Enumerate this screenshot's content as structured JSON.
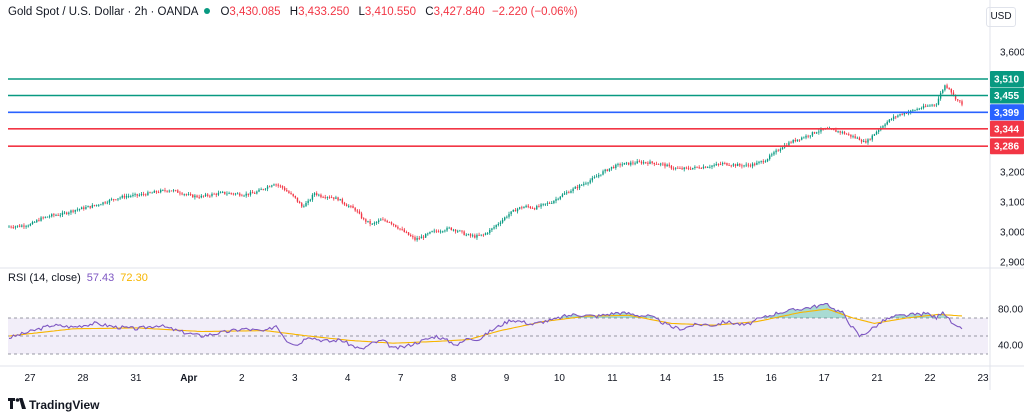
{
  "header": {
    "symbol": "Gold Spot / U.S. Dollar · 2h · OANDA",
    "open_label": "O",
    "open": "3,430.085",
    "high_label": "H",
    "high": "3,433.250",
    "low_label": "L",
    "low": "3,410.550",
    "close_label": "C",
    "close": "3,427.840",
    "change": "−2.220 (−0.06%)"
  },
  "currency": "USD",
  "rsi_label": {
    "name": "RSI (14, close)",
    "value": "57.43",
    "ma_value": "72.30"
  },
  "branding": "TradingView",
  "colors": {
    "up": "#089981",
    "down": "#f23645",
    "resistance_line": "#089981",
    "pivot_line": "#2962ff",
    "support_line": "#f23645",
    "rsi_line": "#7e57c2",
    "rsi_ma_line": "#f7b500"
  },
  "chart_data": [
    {
      "type": "candlestick",
      "title": "",
      "x_tick_labels": [
        "27",
        "28",
        "31",
        "Apr",
        "2",
        "3",
        "4",
        "7",
        "8",
        "9",
        "10",
        "11",
        "14",
        "15",
        "16",
        "17",
        "21",
        "22",
        "23"
      ],
      "y_ticks": [
        2900,
        3000,
        3100,
        3200,
        3300,
        3400,
        3500,
        3600
      ],
      "y_tick_labels": [
        "2,900",
        "3,000",
        "3,100",
        "3,200",
        "3,300",
        "3,400",
        "3,500",
        "3,600"
      ],
      "ylim": [
        2870,
        3680
      ],
      "grid": false,
      "horizontal_levels": [
        {
          "value": 3510,
          "label": "3,510",
          "kind": "resistance"
        },
        {
          "value": 3455,
          "label": "3,455",
          "kind": "resistance"
        },
        {
          "value": 3399,
          "label": "3,399",
          "kind": "pivot"
        },
        {
          "value": 3344,
          "label": "3,344",
          "kind": "support"
        },
        {
          "value": 3286,
          "label": "3,286",
          "kind": "support"
        }
      ],
      "close_anchors": [
        [
          0,
          3018
        ],
        [
          5,
          3020
        ],
        [
          10,
          3025
        ],
        [
          15,
          3045
        ],
        [
          20,
          3055
        ],
        [
          25,
          3060
        ],
        [
          30,
          3072
        ],
        [
          35,
          3080
        ],
        [
          40,
          3088
        ],
        [
          45,
          3100
        ],
        [
          50,
          3112
        ],
        [
          55,
          3120
        ],
        [
          60,
          3122
        ],
        [
          65,
          3128
        ],
        [
          70,
          3135
        ],
        [
          75,
          3140
        ],
        [
          80,
          3132
        ],
        [
          85,
          3120
        ],
        [
          90,
          3118
        ],
        [
          95,
          3125
        ],
        [
          100,
          3130
        ],
        [
          105,
          3128
        ],
        [
          110,
          3125
        ],
        [
          115,
          3130
        ],
        [
          120,
          3148
        ],
        [
          124,
          3162
        ],
        [
          128,
          3148
        ],
        [
          131,
          3130
        ],
        [
          134,
          3112
        ],
        [
          137,
          3085
        ],
        [
          140,
          3100
        ],
        [
          143,
          3130
        ],
        [
          146,
          3120
        ],
        [
          150,
          3118
        ],
        [
          154,
          3110
        ],
        [
          158,
          3090
        ],
        [
          162,
          3075
        ],
        [
          166,
          3040
        ],
        [
          170,
          3025
        ],
        [
          174,
          3040
        ],
        [
          178,
          3035
        ],
        [
          182,
          3015
        ],
        [
          186,
          2995
        ],
        [
          190,
          2975
        ],
        [
          194,
          2985
        ],
        [
          198,
          3000
        ],
        [
          202,
          3005
        ],
        [
          206,
          3012
        ],
        [
          210,
          3005
        ],
        [
          214,
          2990
        ],
        [
          218,
          2985
        ],
        [
          222,
          2990
        ],
        [
          226,
          3010
        ],
        [
          230,
          3035
        ],
        [
          234,
          3060
        ],
        [
          238,
          3078
        ],
        [
          242,
          3085
        ],
        [
          246,
          3080
        ],
        [
          250,
          3090
        ],
        [
          254,
          3100
        ],
        [
          258,
          3120
        ],
        [
          262,
          3135
        ],
        [
          266,
          3150
        ],
        [
          270,
          3165
        ],
        [
          274,
          3180
        ],
        [
          278,
          3200
        ],
        [
          282,
          3215
        ],
        [
          286,
          3225
        ],
        [
          290,
          3228
        ],
        [
          294,
          3232
        ],
        [
          298,
          3232
        ],
        [
          302,
          3230
        ],
        [
          306,
          3225
        ],
        [
          310,
          3215
        ],
        [
          314,
          3210
        ],
        [
          318,
          3212
        ],
        [
          322,
          3215
        ],
        [
          326,
          3218
        ],
        [
          330,
          3222
        ],
        [
          334,
          3228
        ],
        [
          338,
          3225
        ],
        [
          342,
          3222
        ],
        [
          346,
          3222
        ],
        [
          350,
          3228
        ],
        [
          354,
          3240
        ],
        [
          358,
          3262
        ],
        [
          362,
          3285
        ],
        [
          366,
          3300
        ],
        [
          370,
          3312
        ],
        [
          374,
          3322
        ],
        [
          378,
          3335
        ],
        [
          382,
          3342
        ],
        [
          386,
          3338
        ],
        [
          390,
          3332
        ],
        [
          394,
          3320
        ],
        [
          398,
          3310
        ],
        [
          400,
          3300
        ],
        [
          402,
          3305
        ],
        [
          406,
          3335
        ],
        [
          410,
          3362
        ],
        [
          414,
          3382
        ],
        [
          418,
          3395
        ],
        [
          422,
          3402
        ],
        [
          426,
          3412
        ],
        [
          430,
          3420
        ],
        [
          434,
          3428
        ],
        [
          436,
          3462
        ],
        [
          438,
          3488
        ],
        [
          440,
          3480
        ],
        [
          442,
          3455
        ],
        [
          444,
          3438
        ],
        [
          446,
          3428
        ]
      ],
      "bars_per_day_approx": 11
    },
    {
      "type": "line",
      "title": "",
      "series": [
        {
          "name": "",
          "role": "rsi",
          "anchors": [
            [
              0,
              48
            ],
            [
              10,
              55
            ],
            [
              20,
              62
            ],
            [
              30,
              60
            ],
            [
              40,
              64
            ],
            [
              50,
              60
            ],
            [
              60,
              58
            ],
            [
              70,
              62
            ],
            [
              80,
              55
            ],
            [
              90,
              50
            ],
            [
              100,
              54
            ],
            [
              110,
              58
            ],
            [
              120,
              55
            ],
            [
              125,
              62
            ],
            [
              130,
              45
            ],
            [
              135,
              40
            ],
            [
              140,
              50
            ],
            [
              145,
              46
            ],
            [
              150,
              44
            ],
            [
              155,
              46
            ],
            [
              160,
              40
            ],
            [
              165,
              35
            ],
            [
              170,
              42
            ],
            [
              175,
              45
            ],
            [
              180,
              36
            ],
            [
              185,
              38
            ],
            [
              190,
              42
            ],
            [
              195,
              46
            ],
            [
              200,
              50
            ],
            [
              205,
              45
            ],
            [
              210,
              40
            ],
            [
              215,
              48
            ],
            [
              220,
              46
            ],
            [
              225,
              55
            ],
            [
              230,
              62
            ],
            [
              235,
              68
            ],
            [
              240,
              66
            ],
            [
              245,
              63
            ],
            [
              250,
              66
            ],
            [
              255,
              68
            ],
            [
              260,
              72
            ],
            [
              265,
              74
            ],
            [
              270,
              73
            ],
            [
              275,
              72
            ],
            [
              280,
              74
            ],
            [
              285,
              76
            ],
            [
              290,
              75
            ],
            [
              295,
              73
            ],
            [
              300,
              72
            ],
            [
              305,
              66
            ],
            [
              310,
              60
            ],
            [
              315,
              58
            ],
            [
              320,
              62
            ],
            [
              325,
              63
            ],
            [
              330,
              62
            ],
            [
              335,
              66
            ],
            [
              340,
              64
            ],
            [
              345,
              62
            ],
            [
              350,
              68
            ],
            [
              355,
              72
            ],
            [
              360,
              76
            ],
            [
              365,
              78
            ],
            [
              370,
              80
            ],
            [
              375,
              82
            ],
            [
              380,
              84
            ],
            [
              383,
              86
            ],
            [
              386,
              80
            ],
            [
              390,
              76
            ],
            [
              394,
              62
            ],
            [
              398,
              50
            ],
            [
              400,
              52
            ],
            [
              405,
              60
            ],
            [
              410,
              68
            ],
            [
              415,
              72
            ],
            [
              420,
              73
            ],
            [
              425,
              74
            ],
            [
              430,
              75
            ],
            [
              434,
              70
            ],
            [
              437,
              78
            ],
            [
              440,
              68
            ],
            [
              443,
              60
            ],
            [
              446,
              57.43
            ]
          ]
        },
        {
          "name": "",
          "role": "rsi_ma",
          "anchors": [
            [
              0,
              50
            ],
            [
              30,
              58
            ],
            [
              60,
              59
            ],
            [
              90,
              55
            ],
            [
              120,
              56
            ],
            [
              140,
              50
            ],
            [
              160,
              45
            ],
            [
              180,
              42
            ],
            [
              200,
              44
            ],
            [
              215,
              46
            ],
            [
              230,
              56
            ],
            [
              250,
              66
            ],
            [
              270,
              72
            ],
            [
              290,
              73
            ],
            [
              310,
              64
            ],
            [
              330,
              62
            ],
            [
              350,
              66
            ],
            [
              370,
              76
            ],
            [
              383,
              80
            ],
            [
              395,
              70
            ],
            [
              405,
              64
            ],
            [
              420,
              70
            ],
            [
              435,
              74
            ],
            [
              446,
              72.3
            ]
          ]
        }
      ],
      "y_ticks": [
        40,
        60,
        80
      ],
      "y_tick_labels": [
        "40.00",
        "",
        "80.00"
      ],
      "ylim": [
        33,
        87
      ],
      "overbought": 70,
      "oversold": 30,
      "grid": false
    }
  ]
}
